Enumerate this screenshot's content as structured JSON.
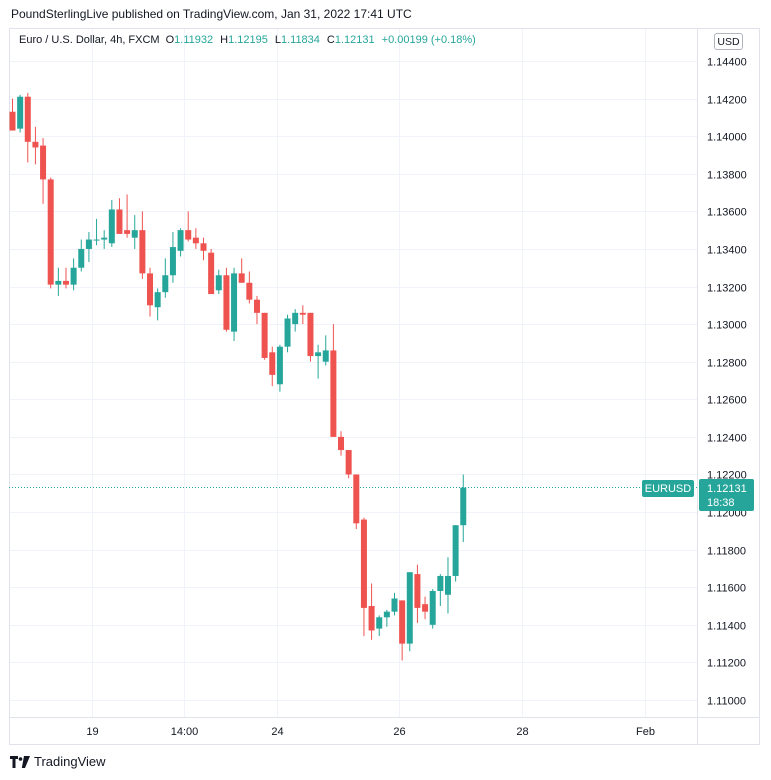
{
  "publisher_line": "PoundSterlingLive published on TradingView.com, Jan 31, 2022 17:41 UTC",
  "legend": {
    "symbol": "Euro / U.S. Dollar, 4h, FXCM",
    "open_label": "O",
    "open": "1.11932",
    "high_label": "H",
    "high": "1.12195",
    "low_label": "L",
    "low": "1.11834",
    "close_label": "C",
    "close": "1.12131",
    "change": "+0.00199 (+0.18%)"
  },
  "currency_button": "USD",
  "price_label": {
    "symbol": "EURUSD",
    "price": "1.12131",
    "countdown": "18:38"
  },
  "footer_brand": "TradingView",
  "colors": {
    "up": "#26a69a",
    "down": "#ef5350",
    "grid": "#f0f3fa",
    "axis_text": "#131722"
  },
  "chart_data": {
    "type": "candlestick",
    "y_ticks": [
      "1.14400",
      "1.14200",
      "1.14000",
      "1.13800",
      "1.13600",
      "1.13400",
      "1.13200",
      "1.13000",
      "1.12800",
      "1.12600",
      "1.12400",
      "1.12200",
      "1.12000",
      "1.11800",
      "1.11600",
      "1.11400",
      "1.11200",
      "1.11000"
    ],
    "ylim": [
      1.109,
      1.145
    ],
    "x_ticks": [
      "19",
      "14:00",
      "24",
      "26",
      "28",
      "Feb"
    ],
    "last_price": 1.12131,
    "candles": [
      {
        "o": 1.1413,
        "h": 1.142,
        "l": 1.1403,
        "c": 1.1403
      },
      {
        "o": 1.1404,
        "h": 1.1422,
        "l": 1.1402,
        "c": 1.1421
      },
      {
        "o": 1.1421,
        "h": 1.1423,
        "l": 1.1386,
        "c": 1.1397
      },
      {
        "o": 1.1397,
        "h": 1.1405,
        "l": 1.1385,
        "c": 1.1394
      },
      {
        "o": 1.1395,
        "h": 1.1399,
        "l": 1.1364,
        "c": 1.1377
      },
      {
        "o": 1.1377,
        "h": 1.1378,
        "l": 1.1319,
        "c": 1.1321
      },
      {
        "o": 1.1321,
        "h": 1.133,
        "l": 1.1315,
        "c": 1.1323
      },
      {
        "o": 1.1323,
        "h": 1.133,
        "l": 1.1319,
        "c": 1.1321
      },
      {
        "o": 1.1321,
        "h": 1.1335,
        "l": 1.1318,
        "c": 1.133
      },
      {
        "o": 1.133,
        "h": 1.1345,
        "l": 1.1328,
        "c": 1.134
      },
      {
        "o": 1.134,
        "h": 1.1349,
        "l": 1.1333,
        "c": 1.1345
      },
      {
        "o": 1.1345,
        "h": 1.1356,
        "l": 1.1342,
        "c": 1.1345
      },
      {
        "o": 1.1345,
        "h": 1.135,
        "l": 1.134,
        "c": 1.1346
      },
      {
        "o": 1.1343,
        "h": 1.1366,
        "l": 1.1341,
        "c": 1.1361
      },
      {
        "o": 1.1361,
        "h": 1.1367,
        "l": 1.1348,
        "c": 1.1348
      },
      {
        "o": 1.135,
        "h": 1.1369,
        "l": 1.1346,
        "c": 1.1348
      },
      {
        "o": 1.1346,
        "h": 1.1358,
        "l": 1.134,
        "c": 1.135
      },
      {
        "o": 1.135,
        "h": 1.136,
        "l": 1.1324,
        "c": 1.1327
      },
      {
        "o": 1.1327,
        "h": 1.133,
        "l": 1.1304,
        "c": 1.131
      },
      {
        "o": 1.1309,
        "h": 1.1319,
        "l": 1.1302,
        "c": 1.1317
      },
      {
        "o": 1.1317,
        "h": 1.1335,
        "l": 1.1314,
        "c": 1.1326
      },
      {
        "o": 1.1326,
        "h": 1.1349,
        "l": 1.1322,
        "c": 1.1341
      },
      {
        "o": 1.1339,
        "h": 1.1351,
        "l": 1.1336,
        "c": 1.135
      },
      {
        "o": 1.135,
        "h": 1.136,
        "l": 1.1344,
        "c": 1.1345
      },
      {
        "o": 1.1346,
        "h": 1.1351,
        "l": 1.134,
        "c": 1.1343
      },
      {
        "o": 1.1343,
        "h": 1.1346,
        "l": 1.1334,
        "c": 1.1339
      },
      {
        "o": 1.1338,
        "h": 1.134,
        "l": 1.1316,
        "c": 1.1316
      },
      {
        "o": 1.1318,
        "h": 1.1329,
        "l": 1.1316,
        "c": 1.1326
      },
      {
        "o": 1.1326,
        "h": 1.133,
        "l": 1.1296,
        "c": 1.1297
      },
      {
        "o": 1.1296,
        "h": 1.133,
        "l": 1.1291,
        "c": 1.1327
      },
      {
        "o": 1.1327,
        "h": 1.1335,
        "l": 1.1322,
        "c": 1.1322
      },
      {
        "o": 1.1322,
        "h": 1.1328,
        "l": 1.1311,
        "c": 1.1313
      },
      {
        "o": 1.1313,
        "h": 1.1315,
        "l": 1.13,
        "c": 1.1306
      },
      {
        "o": 1.1306,
        "h": 1.1306,
        "l": 1.1281,
        "c": 1.1282
      },
      {
        "o": 1.1285,
        "h": 1.1288,
        "l": 1.1267,
        "c": 1.1273
      },
      {
        "o": 1.1268,
        "h": 1.1289,
        "l": 1.1264,
        "c": 1.1288
      },
      {
        "o": 1.1288,
        "h": 1.1305,
        "l": 1.1285,
        "c": 1.1303
      },
      {
        "o": 1.13,
        "h": 1.1308,
        "l": 1.1296,
        "c": 1.1306
      },
      {
        "o": 1.1306,
        "h": 1.131,
        "l": 1.13,
        "c": 1.1305
      },
      {
        "o": 1.1306,
        "h": 1.1306,
        "l": 1.128,
        "c": 1.1283
      },
      {
        "o": 1.1283,
        "h": 1.1289,
        "l": 1.1271,
        "c": 1.1285
      },
      {
        "o": 1.128,
        "h": 1.1294,
        "l": 1.1278,
        "c": 1.1286
      },
      {
        "o": 1.1286,
        "h": 1.13,
        "l": 1.124,
        "c": 1.124
      },
      {
        "o": 1.124,
        "h": 1.1243,
        "l": 1.123,
        "c": 1.1233
      },
      {
        "o": 1.1233,
        "h": 1.1233,
        "l": 1.1218,
        "c": 1.122
      },
      {
        "o": 1.122,
        "h": 1.122,
        "l": 1.1191,
        "c": 1.1194
      },
      {
        "o": 1.1196,
        "h": 1.1197,
        "l": 1.1134,
        "c": 1.1149
      },
      {
        "o": 1.115,
        "h": 1.1162,
        "l": 1.1132,
        "c": 1.1137
      },
      {
        "o": 1.1138,
        "h": 1.1145,
        "l": 1.1134,
        "c": 1.1144
      },
      {
        "o": 1.1144,
        "h": 1.1148,
        "l": 1.1139,
        "c": 1.1147
      },
      {
        "o": 1.1147,
        "h": 1.1157,
        "l": 1.1145,
        "c": 1.1154
      },
      {
        "o": 1.1153,
        "h": 1.1153,
        "l": 1.1121,
        "c": 1.113
      },
      {
        "o": 1.113,
        "h": 1.1168,
        "l": 1.1126,
        "c": 1.1168
      },
      {
        "o": 1.1167,
        "h": 1.1172,
        "l": 1.1141,
        "c": 1.1149
      },
      {
        "o": 1.1151,
        "h": 1.1155,
        "l": 1.1143,
        "c": 1.1147
      },
      {
        "o": 1.114,
        "h": 1.1159,
        "l": 1.1138,
        "c": 1.1158
      },
      {
        "o": 1.1158,
        "h": 1.1167,
        "l": 1.115,
        "c": 1.1166
      },
      {
        "o": 1.1156,
        "h": 1.1176,
        "l": 1.1146,
        "c": 1.1166
      },
      {
        "o": 1.1166,
        "h": 1.1193,
        "l": 1.1163,
        "c": 1.1193
      },
      {
        "o": 1.1193,
        "h": 1.122,
        "l": 1.1184,
        "c": 1.1213
      }
    ]
  }
}
